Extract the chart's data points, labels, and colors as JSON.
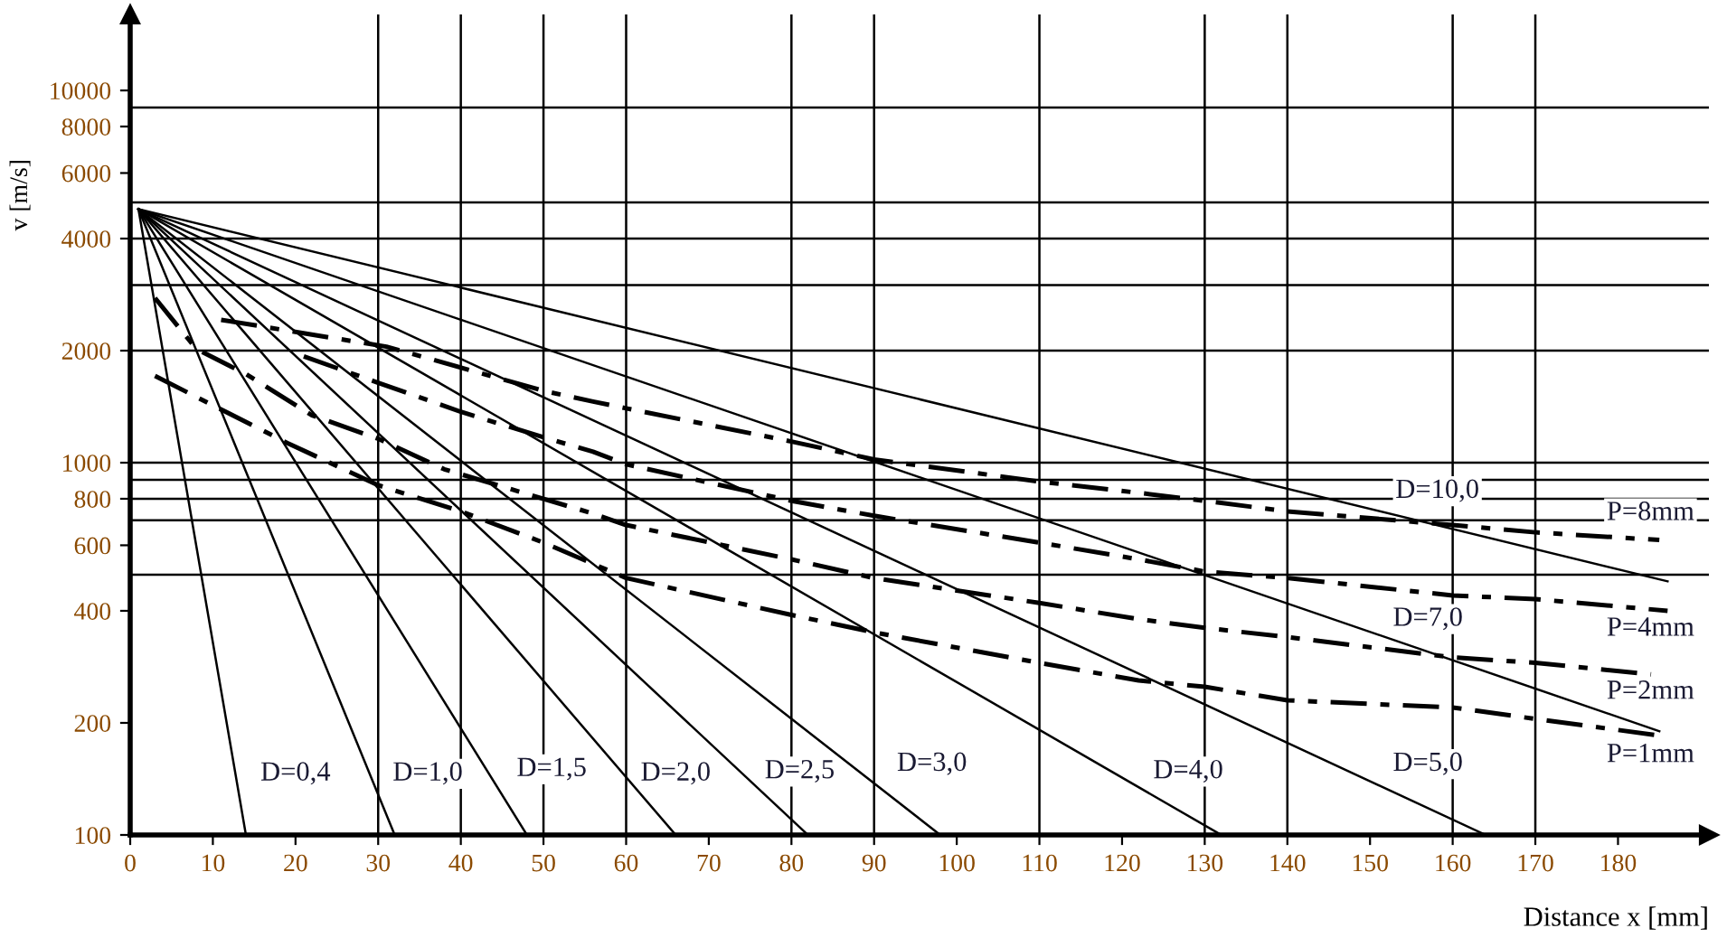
{
  "chart_data": {
    "type": "line",
    "xlabel": "Distance x [mm]",
    "ylabel": "v [m/s]",
    "log": "y",
    "xlim": [
      0,
      191
    ],
    "ylim": [
      100,
      16000
    ],
    "xticks": [
      0,
      10,
      20,
      30,
      40,
      50,
      60,
      70,
      80,
      90,
      100,
      110,
      120,
      130,
      140,
      150,
      160,
      170,
      180
    ],
    "yticks": [
      100,
      200,
      400,
      600,
      800,
      1000,
      2000,
      4000,
      6000,
      8000,
      10000
    ],
    "grid": false,
    "marker": "none",
    "series": [
      {
        "color": "#000000",
        "line_style": "solid",
        "x": [
          1,
          14
        ],
        "values": [
          4800,
          100
        ]
      },
      {
        "color": "#000000",
        "line_style": "solid",
        "x": [
          1,
          32
        ],
        "values": [
          4800,
          100
        ]
      },
      {
        "color": "#000000",
        "line_style": "solid",
        "x": [
          1,
          48
        ],
        "values": [
          4800,
          100
        ]
      },
      {
        "color": "#000000",
        "line_style": "solid",
        "x": [
          1,
          66
        ],
        "values": [
          4800,
          100
        ]
      },
      {
        "color": "#000000",
        "line_style": "solid",
        "x": [
          1,
          82
        ],
        "values": [
          4800,
          100
        ]
      },
      {
        "color": "#000000",
        "line_style": "solid",
        "x": [
          1,
          98
        ],
        "values": [
          4800,
          100
        ]
      },
      {
        "color": "#000000",
        "line_style": "solid",
        "x": [
          1,
          132
        ],
        "values": [
          4800,
          100
        ]
      },
      {
        "color": "#000000",
        "line_style": "solid",
        "x": [
          1,
          164
        ],
        "values": [
          4800,
          100
        ]
      },
      {
        "color": "#000000",
        "line_style": "solid",
        "x": [
          1,
          185
        ],
        "values": [
          4800,
          190
        ]
      },
      {
        "color": "#000000",
        "line_style": "solid",
        "x": [
          1,
          186
        ],
        "values": [
          4800,
          480
        ]
      },
      {
        "color": "#000000",
        "line_style": "dashdot",
        "x": [
          11,
          31,
          50,
          56,
          60,
          80,
          90,
          110,
          122,
          130,
          140,
          160,
          170,
          185
        ],
        "values": [
          2420,
          2050,
          1560,
          1460,
          1400,
          1140,
          1020,
          890,
          830,
          790,
          740,
          680,
          650,
          620
        ]
      },
      {
        "color": "#000000",
        "line_style": "dashdot",
        "x": [
          21,
          30,
          40,
          50,
          56,
          60,
          80,
          90,
          110,
          122,
          130,
          140,
          160,
          170,
          186
        ],
        "values": [
          1930,
          1640,
          1370,
          1170,
          1070,
          990,
          790,
          720,
          610,
          550,
          510,
          490,
          440,
          430,
          400
        ]
      },
      {
        "color": "#000000",
        "line_style": "dashdot",
        "x": [
          3,
          8,
          14,
          22,
          30,
          38,
          56,
          60,
          80,
          90,
          110,
          122,
          130,
          140,
          160,
          170,
          184
        ],
        "values": [
          2770,
          2020,
          1730,
          1340,
          1160,
          960,
          730,
          680,
          550,
          490,
          420,
          380,
          360,
          340,
          300,
          290,
          270
        ]
      },
      {
        "color": "#000000",
        "line_style": "dashdot",
        "x": [
          3,
          19,
          30,
          40,
          50,
          60,
          80,
          90,
          110,
          122,
          130,
          140,
          160,
          170,
          185
        ],
        "values": [
          1710,
          1130,
          870,
          740,
          610,
          490,
          390,
          350,
          290,
          260,
          250,
          230,
          220,
          205,
          185
        ]
      }
    ],
    "ref_lines": [
      {
        "axis": "y",
        "value": 500
      },
      {
        "axis": "y",
        "value": 700
      },
      {
        "axis": "y",
        "value": 800
      },
      {
        "axis": "y",
        "value": 900
      },
      {
        "axis": "y",
        "value": 1000
      },
      {
        "axis": "y",
        "value": 2000
      },
      {
        "axis": "y",
        "value": 3000
      },
      {
        "axis": "y",
        "value": 4000
      },
      {
        "axis": "y",
        "value": 5000
      },
      {
        "axis": "y",
        "value": 9000
      },
      {
        "axis": "x",
        "value": 30
      },
      {
        "axis": "x",
        "value": 40
      },
      {
        "axis": "x",
        "value": 50
      },
      {
        "axis": "x",
        "value": 60
      },
      {
        "axis": "x",
        "value": 80
      },
      {
        "axis": "x",
        "value": 90
      },
      {
        "axis": "x",
        "value": 110
      },
      {
        "axis": "x",
        "value": 130
      },
      {
        "axis": "x",
        "value": 140
      },
      {
        "axis": "x",
        "value": 160
      },
      {
        "axis": "x",
        "value": 170
      }
    ],
    "annotations": [
      {
        "text": "D=0,4",
        "x": 20,
        "y": 146
      },
      {
        "text": "D=1,0",
        "x": 36,
        "y": 146
      },
      {
        "text": "D=1,5",
        "x": 51,
        "y": 150
      },
      {
        "text": "D=2,0",
        "x": 66,
        "y": 146
      },
      {
        "text": "D=2,5",
        "x": 81,
        "y": 148
      },
      {
        "text": "D=3,0",
        "x": 97,
        "y": 155
      },
      {
        "text": "D=4,0",
        "x": 128,
        "y": 148
      },
      {
        "text": "D=5,0",
        "x": 157,
        "y": 155
      },
      {
        "text": "D=7,0",
        "x": 157,
        "y": 380
      },
      "D=10,0",
      "P=8mm",
      "P=4mm",
      "P=2mm",
      "P=1mm"
    ]
  }
}
